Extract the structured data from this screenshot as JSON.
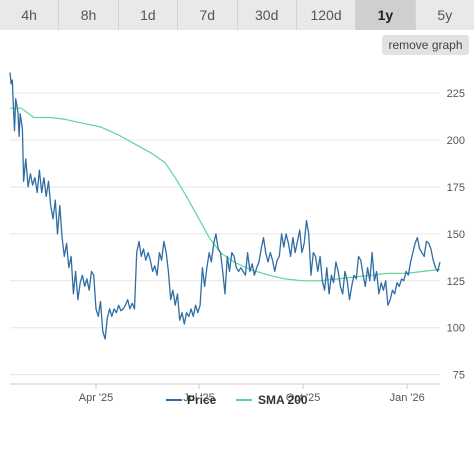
{
  "timeframes": {
    "items": [
      "4h",
      "8h",
      "1d",
      "7d",
      "30d",
      "120d",
      "1y",
      "5y"
    ],
    "selected": "1y"
  },
  "remove_graph_label": "remove graph",
  "colors": {
    "price": "#2f6da3",
    "sma": "#5fd49a",
    "grid": "#e6e6e6",
    "axis": "#cccccc"
  },
  "chart_data": {
    "type": "line",
    "x_unit": "date",
    "x_range": [
      "2025-01-15",
      "2026-01-30"
    ],
    "x_ticks": [
      {
        "label": "Apr '25",
        "date": "2025-04-01"
      },
      {
        "label": "Jul '25",
        "date": "2025-07-01"
      },
      {
        "label": "Oct '25",
        "date": "2025-10-01"
      },
      {
        "label": "Jan '26",
        "date": "2026-01-01"
      }
    ],
    "y_ticks": [
      75,
      100,
      125,
      150,
      175,
      200,
      225
    ],
    "ylim": [
      70,
      240
    ],
    "grid": "horizontal",
    "legend_position": "bottom",
    "series": [
      {
        "name": "Price",
        "color": "#2f6da3",
        "points": [
          [
            "2025-01-15",
            236
          ],
          [
            "2025-01-16",
            230
          ],
          [
            "2025-01-17",
            232
          ],
          [
            "2025-01-18",
            218
          ],
          [
            "2025-01-19",
            205
          ],
          [
            "2025-01-20",
            222
          ],
          [
            "2025-01-22",
            215
          ],
          [
            "2025-01-23",
            202
          ],
          [
            "2025-01-24",
            214
          ],
          [
            "2025-01-26",
            206
          ],
          [
            "2025-01-27",
            178
          ],
          [
            "2025-01-29",
            190
          ],
          [
            "2025-01-31",
            175
          ],
          [
            "2025-02-02",
            182
          ],
          [
            "2025-02-04",
            176
          ],
          [
            "2025-02-06",
            180
          ],
          [
            "2025-02-08",
            172
          ],
          [
            "2025-02-10",
            184
          ],
          [
            "2025-02-12",
            172
          ],
          [
            "2025-02-14",
            180
          ],
          [
            "2025-02-16",
            170
          ],
          [
            "2025-02-18",
            178
          ],
          [
            "2025-02-20",
            165
          ],
          [
            "2025-02-22",
            158
          ],
          [
            "2025-02-24",
            168
          ],
          [
            "2025-02-26",
            150
          ],
          [
            "2025-02-28",
            165
          ],
          [
            "2025-03-02",
            148
          ],
          [
            "2025-03-04",
            138
          ],
          [
            "2025-03-06",
            145
          ],
          [
            "2025-03-08",
            132
          ],
          [
            "2025-03-10",
            138
          ],
          [
            "2025-03-12",
            118
          ],
          [
            "2025-03-14",
            130
          ],
          [
            "2025-03-16",
            115
          ],
          [
            "2025-03-18",
            124
          ],
          [
            "2025-03-20",
            128
          ],
          [
            "2025-03-22",
            122
          ],
          [
            "2025-03-24",
            126
          ],
          [
            "2025-03-26",
            120
          ],
          [
            "2025-03-28",
            130
          ],
          [
            "2025-03-30",
            128
          ],
          [
            "2025-04-01",
            110
          ],
          [
            "2025-04-03",
            106
          ],
          [
            "2025-04-05",
            114
          ],
          [
            "2025-04-07",
            98
          ],
          [
            "2025-04-09",
            94
          ],
          [
            "2025-04-11",
            105
          ],
          [
            "2025-04-13",
            110
          ],
          [
            "2025-04-15",
            106
          ],
          [
            "2025-04-17",
            110
          ],
          [
            "2025-04-19",
            108
          ],
          [
            "2025-04-21",
            112
          ],
          [
            "2025-04-23",
            109
          ],
          [
            "2025-04-25",
            110
          ],
          [
            "2025-04-27",
            112
          ],
          [
            "2025-04-29",
            115
          ],
          [
            "2025-05-01",
            110
          ],
          [
            "2025-05-03",
            113
          ],
          [
            "2025-05-05",
            110
          ],
          [
            "2025-05-07",
            140
          ],
          [
            "2025-05-09",
            146
          ],
          [
            "2025-05-11",
            138
          ],
          [
            "2025-05-13",
            142
          ],
          [
            "2025-05-15",
            136
          ],
          [
            "2025-05-17",
            140
          ],
          [
            "2025-05-19",
            136
          ],
          [
            "2025-05-21",
            130
          ],
          [
            "2025-05-23",
            133
          ],
          [
            "2025-05-25",
            128
          ],
          [
            "2025-05-27",
            140
          ],
          [
            "2025-05-29",
            136
          ],
          [
            "2025-05-31",
            146
          ],
          [
            "2025-06-02",
            140
          ],
          [
            "2025-06-04",
            130
          ],
          [
            "2025-06-06",
            115
          ],
          [
            "2025-06-08",
            120
          ],
          [
            "2025-06-10",
            112
          ],
          [
            "2025-06-12",
            118
          ],
          [
            "2025-06-14",
            104
          ],
          [
            "2025-06-16",
            108
          ],
          [
            "2025-06-18",
            102
          ],
          [
            "2025-06-20",
            108
          ],
          [
            "2025-06-22",
            106
          ],
          [
            "2025-06-24",
            110
          ],
          [
            "2025-06-26",
            106
          ],
          [
            "2025-06-28",
            112
          ],
          [
            "2025-06-30",
            108
          ],
          [
            "2025-07-02",
            112
          ],
          [
            "2025-07-04",
            132
          ],
          [
            "2025-07-06",
            122
          ],
          [
            "2025-07-08",
            132
          ],
          [
            "2025-07-10",
            140
          ],
          [
            "2025-07-12",
            135
          ],
          [
            "2025-07-14",
            145
          ],
          [
            "2025-07-16",
            150
          ],
          [
            "2025-07-18",
            142
          ],
          [
            "2025-07-20",
            140
          ],
          [
            "2025-07-22",
            130
          ],
          [
            "2025-07-24",
            118
          ],
          [
            "2025-07-26",
            138
          ],
          [
            "2025-07-28",
            130
          ],
          [
            "2025-07-30",
            140
          ],
          [
            "2025-08-01",
            138
          ],
          [
            "2025-08-03",
            132
          ],
          [
            "2025-08-05",
            130
          ],
          [
            "2025-08-07",
            132
          ],
          [
            "2025-08-09",
            130
          ],
          [
            "2025-08-11",
            128
          ],
          [
            "2025-08-13",
            140
          ],
          [
            "2025-08-15",
            130
          ],
          [
            "2025-08-17",
            134
          ],
          [
            "2025-08-19",
            128
          ],
          [
            "2025-08-21",
            132
          ],
          [
            "2025-08-23",
            135
          ],
          [
            "2025-08-25",
            142
          ],
          [
            "2025-08-27",
            148
          ],
          [
            "2025-08-29",
            140
          ],
          [
            "2025-08-31",
            135
          ],
          [
            "2025-09-02",
            140
          ],
          [
            "2025-09-04",
            136
          ],
          [
            "2025-09-06",
            130
          ],
          [
            "2025-09-08",
            136
          ],
          [
            "2025-09-10",
            138
          ],
          [
            "2025-09-12",
            150
          ],
          [
            "2025-09-14",
            143
          ],
          [
            "2025-09-16",
            150
          ],
          [
            "2025-09-18",
            145
          ],
          [
            "2025-09-20",
            138
          ],
          [
            "2025-09-22",
            148
          ],
          [
            "2025-09-24",
            140
          ],
          [
            "2025-09-26",
            146
          ],
          [
            "2025-09-28",
            152
          ],
          [
            "2025-09-30",
            140
          ],
          [
            "2025-10-02",
            145
          ],
          [
            "2025-10-04",
            157
          ],
          [
            "2025-10-06",
            150
          ],
          [
            "2025-10-08",
            128
          ],
          [
            "2025-10-10",
            140
          ],
          [
            "2025-10-12",
            138
          ],
          [
            "2025-10-14",
            130
          ],
          [
            "2025-10-16",
            138
          ],
          [
            "2025-10-18",
            125
          ],
          [
            "2025-10-20",
            120
          ],
          [
            "2025-10-22",
            132
          ],
          [
            "2025-10-24",
            118
          ],
          [
            "2025-10-26",
            128
          ],
          [
            "2025-10-28",
            124
          ],
          [
            "2025-10-30",
            135
          ],
          [
            "2025-11-01",
            130
          ],
          [
            "2025-11-03",
            122
          ],
          [
            "2025-11-05",
            118
          ],
          [
            "2025-11-07",
            130
          ],
          [
            "2025-11-09",
            125
          ],
          [
            "2025-11-11",
            115
          ],
          [
            "2025-11-13",
            122
          ],
          [
            "2025-11-15",
            128
          ],
          [
            "2025-11-17",
            126
          ],
          [
            "2025-11-19",
            138
          ],
          [
            "2025-11-21",
            136
          ],
          [
            "2025-11-23",
            128
          ],
          [
            "2025-11-25",
            122
          ],
          [
            "2025-11-27",
            132
          ],
          [
            "2025-11-29",
            125
          ],
          [
            "2025-12-01",
            140
          ],
          [
            "2025-12-03",
            125
          ],
          [
            "2025-12-05",
            130
          ],
          [
            "2025-12-07",
            118
          ],
          [
            "2025-12-09",
            124
          ],
          [
            "2025-12-11",
            120
          ],
          [
            "2025-12-13",
            125
          ],
          [
            "2025-12-15",
            112
          ],
          [
            "2025-12-17",
            115
          ],
          [
            "2025-12-19",
            120
          ],
          [
            "2025-12-21",
            118
          ],
          [
            "2025-12-23",
            124
          ],
          [
            "2025-12-25",
            122
          ],
          [
            "2025-12-27",
            126
          ],
          [
            "2025-12-29",
            125
          ],
          [
            "2025-12-31",
            130
          ],
          [
            "2026-01-02",
            128
          ],
          [
            "2026-01-04",
            135
          ],
          [
            "2026-01-06",
            140
          ],
          [
            "2026-01-08",
            145
          ],
          [
            "2026-01-10",
            148
          ],
          [
            "2026-01-12",
            142
          ],
          [
            "2026-01-14",
            140
          ],
          [
            "2026-01-16",
            138
          ],
          [
            "2026-01-18",
            146
          ],
          [
            "2026-01-20",
            145
          ],
          [
            "2026-01-22",
            142
          ],
          [
            "2026-01-24",
            136
          ],
          [
            "2026-01-26",
            132
          ],
          [
            "2026-01-28",
            130
          ],
          [
            "2026-01-30",
            135
          ]
        ]
      },
      {
        "name": "SMA 200",
        "color": "#5fd49a",
        "points": [
          [
            "2025-01-15",
            217
          ],
          [
            "2025-01-25",
            217
          ],
          [
            "2025-02-05",
            212
          ],
          [
            "2025-02-20",
            212
          ],
          [
            "2025-03-05",
            211
          ],
          [
            "2025-03-20",
            209
          ],
          [
            "2025-04-05",
            207
          ],
          [
            "2025-04-20",
            203
          ],
          [
            "2025-05-05",
            198
          ],
          [
            "2025-05-20",
            193
          ],
          [
            "2025-06-01",
            188
          ],
          [
            "2025-06-10",
            180
          ],
          [
            "2025-06-20",
            170
          ],
          [
            "2025-07-01",
            158
          ],
          [
            "2025-07-10",
            148
          ],
          [
            "2025-07-20",
            140
          ],
          [
            "2025-08-01",
            135
          ],
          [
            "2025-08-15",
            131
          ],
          [
            "2025-09-01",
            128
          ],
          [
            "2025-09-15",
            126
          ],
          [
            "2025-10-01",
            125
          ],
          [
            "2025-10-15",
            125
          ],
          [
            "2025-11-01",
            126
          ],
          [
            "2025-11-15",
            127
          ],
          [
            "2025-12-01",
            128
          ],
          [
            "2025-12-15",
            129
          ],
          [
            "2026-01-01",
            129
          ],
          [
            "2026-01-15",
            130
          ],
          [
            "2026-01-30",
            131
          ]
        ]
      }
    ]
  }
}
